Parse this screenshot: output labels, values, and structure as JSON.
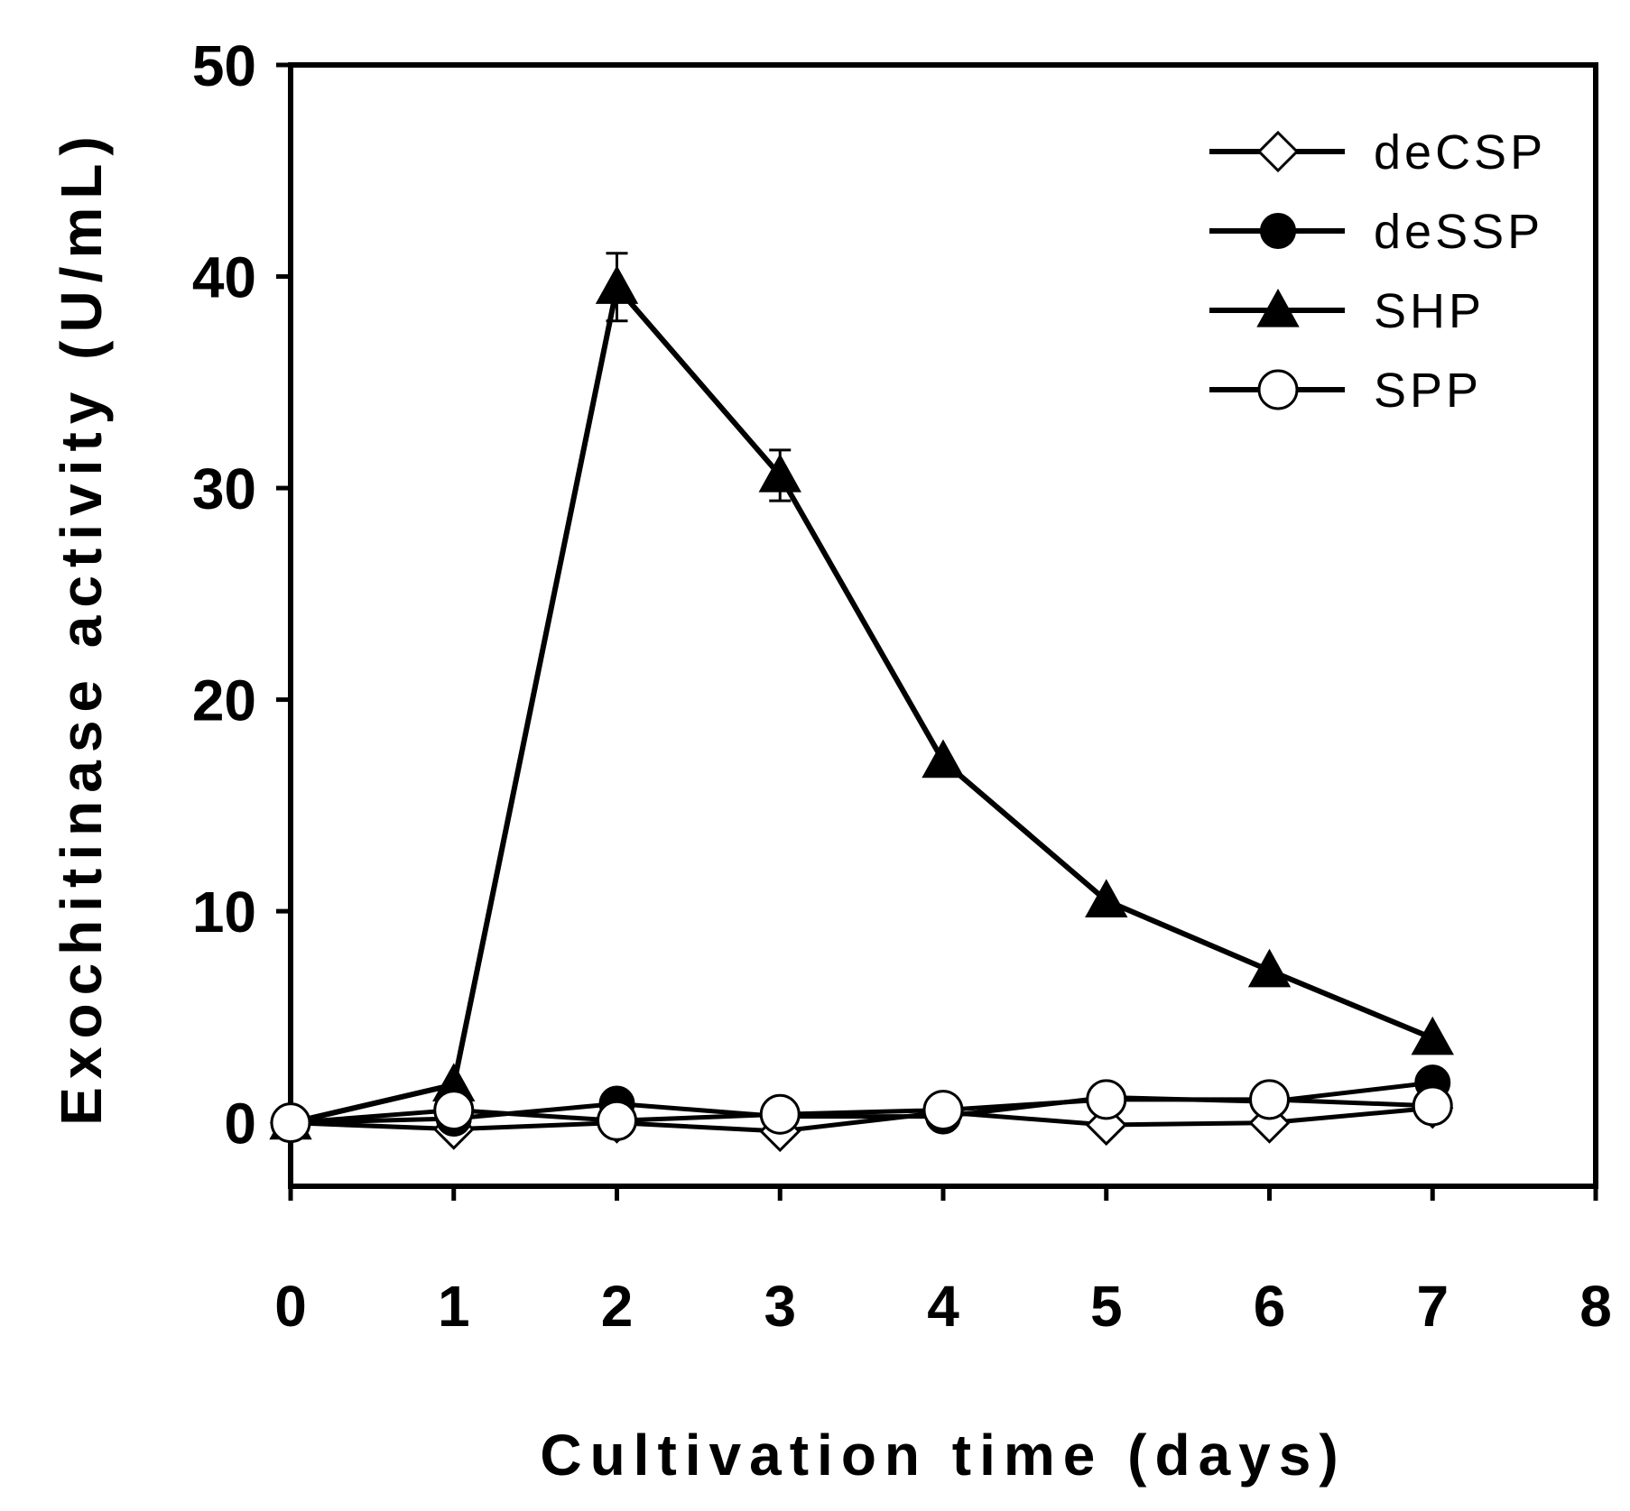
{
  "chart_data": {
    "type": "line",
    "title": "",
    "xlabel": "Cultivation time (days)",
    "ylabel": "Exochitinase activity (U/mL)",
    "xlim": [
      0,
      8
    ],
    "ylim": [
      -3,
      50
    ],
    "x_ticks": [
      "0",
      "1",
      "2",
      "3",
      "4",
      "5",
      "6",
      "7",
      "8"
    ],
    "y_ticks": [
      "0",
      "10",
      "20",
      "30",
      "40",
      "50"
    ],
    "grid": false,
    "legend_position": "top-right",
    "x": [
      0,
      1,
      2,
      3,
      4,
      5,
      6,
      7
    ],
    "series": [
      {
        "name": "deCSP",
        "marker": "diamond-open",
        "values": [
          0.0,
          -0.3,
          0.0,
          -0.4,
          0.5,
          -0.1,
          0.0,
          0.7
        ],
        "errors": [
          0,
          0,
          0,
          0,
          0,
          0,
          0,
          0
        ]
      },
      {
        "name": "deSSP",
        "marker": "circle-filled",
        "values": [
          0.0,
          0.2,
          0.9,
          0.3,
          0.3,
          1.2,
          1.0,
          1.9
        ],
        "errors": [
          0,
          0,
          0,
          0,
          0,
          0,
          0,
          0
        ]
      },
      {
        "name": "SHP",
        "marker": "triangle-filled",
        "values": [
          0.0,
          1.8,
          39.5,
          30.6,
          17.1,
          10.5,
          7.2,
          4.0
        ],
        "errors": [
          0,
          0,
          1.6,
          1.2,
          0,
          0,
          0,
          0
        ]
      },
      {
        "name": "SPP",
        "marker": "circle-open",
        "values": [
          0.0,
          0.6,
          0.1,
          0.4,
          0.6,
          1.1,
          1.1,
          0.8
        ],
        "errors": [
          0,
          0,
          0,
          0,
          0,
          0,
          0,
          0
        ]
      }
    ]
  }
}
